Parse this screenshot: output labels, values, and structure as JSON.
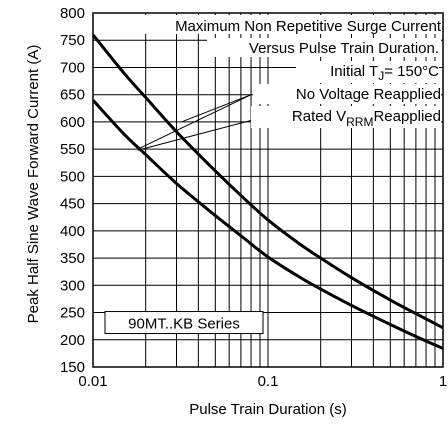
{
  "chart_data": {
    "type": "line",
    "title": "",
    "xlabel": "Pulse Train Duration (s)",
    "ylabel": "Peak Half Sine Wave Forward Current (A)",
    "xscale": "log",
    "xlim": [
      0.01,
      1
    ],
    "ylim": [
      150,
      800
    ],
    "grid": true,
    "x_tick_labels": [
      "0.01",
      "0.1",
      "1"
    ],
    "y_tick_labels": [
      "150",
      "200",
      "250",
      "300",
      "350",
      "400",
      "450",
      "500",
      "550",
      "600",
      "650",
      "700",
      "750",
      "800"
    ],
    "annotations": {
      "line1": "Maximum Non Repetitive Surge Current",
      "line2": "Versus Pulse Train Duration.",
      "tj_pre": "Initial T",
      "tj_sub": "J",
      "tj_post": "= 150°C",
      "no_voltage": "No Voltage Reapplied",
      "rated_pre": "Rated V",
      "rated_sub": "RRM",
      "rated_post": "Reapplied",
      "series_label": "90MT..KB Series"
    },
    "series": [
      {
        "x": [
          0.01,
          0.015,
          0.02,
          0.03,
          0.05,
          0.07,
          0.1,
          0.15,
          0.2,
          0.3,
          0.5,
          0.7,
          1.0
        ],
        "y": [
          760,
          690,
          645,
          582,
          510,
          465,
          420,
          377,
          350,
          314,
          273,
          248,
          222
        ]
      },
      {
        "x": [
          0.01,
          0.015,
          0.02,
          0.03,
          0.05,
          0.07,
          0.1,
          0.15,
          0.2,
          0.3,
          0.5,
          0.7,
          1.0
        ],
        "y": [
          640,
          578,
          540,
          487,
          428,
          391,
          352,
          316,
          293,
          263,
          228,
          206,
          184
        ]
      }
    ]
  }
}
